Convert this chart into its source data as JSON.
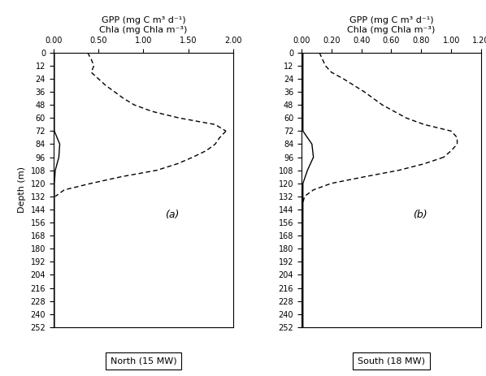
{
  "title_line1": "GPP (mg C m³ d⁻¹)",
  "title_line2": "Chla (mg Chla m⁻³)",
  "ylabel": "Depth (m)",
  "panel_a": {
    "label": "North (15 MW)",
    "xlim": [
      0.0,
      2.0
    ],
    "xticks": [
      0.0,
      0.5,
      1.0,
      1.5,
      2.0
    ],
    "xticklabels": [
      "0.00",
      "0.50",
      "1.00",
      "1.50",
      "2.00"
    ],
    "annotation": "(a)",
    "chl_depths": [
      0,
      12,
      24,
      36,
      48,
      60,
      72,
      84,
      96,
      108,
      120,
      132,
      144,
      156,
      168,
      180,
      192,
      204,
      216,
      228,
      240,
      252
    ],
    "chl_values": [
      0.01,
      0.01,
      0.01,
      0.01,
      0.01,
      0.01,
      0.01,
      0.07,
      0.06,
      0.02,
      0.01,
      0.01,
      0.01,
      0.01,
      0.01,
      0.01,
      0.01,
      0.01,
      0.01,
      0.01,
      0.01,
      0.01
    ],
    "gpp_upper_depths": [
      0,
      6,
      12,
      18,
      24,
      30,
      36,
      42,
      48,
      54,
      60,
      66,
      72
    ],
    "gpp_upper_values": [
      0.38,
      0.42,
      0.45,
      0.42,
      0.5,
      0.58,
      0.68,
      0.78,
      0.9,
      1.1,
      1.4,
      1.8,
      1.92
    ],
    "gpp_lower_depths": [
      72,
      78,
      84,
      90,
      96,
      102,
      108,
      114,
      120,
      126,
      132
    ],
    "gpp_lower_values": [
      1.92,
      1.85,
      1.8,
      1.7,
      1.55,
      1.38,
      1.15,
      0.75,
      0.42,
      0.12,
      0.02
    ]
  },
  "panel_b": {
    "label": "South (18 MW)",
    "xlim": [
      0.0,
      1.2
    ],
    "xticks": [
      0.0,
      0.2,
      0.4,
      0.6,
      0.8,
      1.0,
      1.2
    ],
    "xticklabels": [
      "0.00",
      "0.20",
      "0.40",
      "0.60",
      "0.80",
      "1.00",
      "1.20"
    ],
    "annotation": "(b)",
    "chl_depths": [
      0,
      12,
      24,
      36,
      48,
      60,
      72,
      84,
      96,
      108,
      120,
      132,
      144,
      156,
      168,
      180,
      192,
      204,
      216,
      228,
      240,
      252
    ],
    "chl_values": [
      0.01,
      0.01,
      0.01,
      0.01,
      0.01,
      0.01,
      0.01,
      0.07,
      0.08,
      0.04,
      0.01,
      0.01,
      0.01,
      0.01,
      0.01,
      0.01,
      0.01,
      0.01,
      0.01,
      0.01,
      0.01,
      0.01
    ],
    "gpp_upper_depths": [
      0,
      6,
      12,
      18,
      24,
      30,
      36,
      42,
      48,
      54,
      60,
      66,
      72,
      78,
      84,
      90,
      96
    ],
    "gpp_upper_values": [
      0.12,
      0.14,
      0.16,
      0.2,
      0.28,
      0.35,
      0.42,
      0.48,
      0.54,
      0.62,
      0.7,
      0.82,
      1.0,
      1.04,
      1.04,
      1.0,
      0.95
    ],
    "gpp_lower_depths": [
      96,
      102,
      108,
      114,
      120,
      126,
      132,
      138
    ],
    "gpp_lower_values": [
      0.95,
      0.82,
      0.65,
      0.42,
      0.2,
      0.08,
      0.02,
      0.01
    ]
  },
  "depth_ticks": [
    0,
    12,
    24,
    36,
    48,
    60,
    72,
    84,
    96,
    108,
    120,
    132,
    144,
    156,
    168,
    180,
    192,
    204,
    216,
    228,
    240,
    252
  ],
  "ylim": [
    0,
    252
  ],
  "line_color": "black",
  "linewidth": 1.0,
  "tick_fontsize": 7.0,
  "label_fontsize": 8.0,
  "title_fontsize": 8.0,
  "annotation_fontsize": 9
}
